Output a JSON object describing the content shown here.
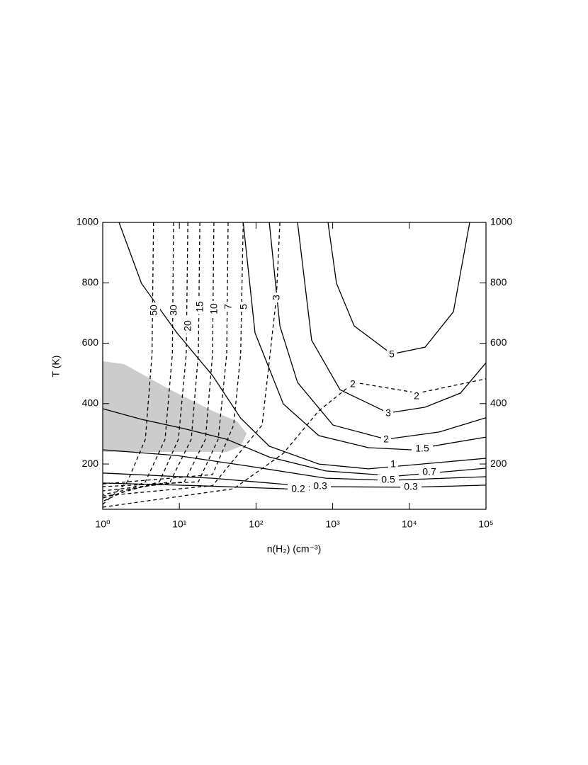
{
  "chart_data": {
    "type": "contour",
    "x_label": "n(H₂) (cm⁻³)",
    "y_label": "T (K)",
    "xlim": [
      1,
      100000
    ],
    "ylim": [
      50,
      1000
    ],
    "xscale": "log",
    "xticks": [
      {
        "value": 1,
        "label": "10⁰"
      },
      {
        "value": 10,
        "label": "10¹"
      },
      {
        "value": 100,
        "label": "10²"
      },
      {
        "value": 1000,
        "label": "10³"
      },
      {
        "value": 10000,
        "label": "10⁴"
      },
      {
        "value": 100000,
        "label": "10⁵"
      }
    ],
    "yticks": [
      200,
      400,
      600,
      800,
      1000
    ],
    "color": "#000000",
    "shade_color": "#cccccc",
    "series": [
      {
        "name": "5",
        "style": "solid",
        "x": [
          869,
          1122,
          1910,
          5900,
          16030,
          37580,
          61300
        ],
        "values": [
          1000,
          798,
          657,
          564,
          587,
          704,
          1000
        ]
      },
      {
        "name": "3",
        "style": "solid",
        "x": [
          348,
          532,
          1248,
          5300,
          16030,
          46450,
          100000
        ],
        "values": [
          1000,
          610,
          446,
          369,
          388,
          435,
          535
        ]
      },
      {
        "name": "2",
        "style": "solid",
        "x": [
          149,
          205,
          348,
          1009,
          4980,
          24550,
          100000
        ],
        "values": [
          1000,
          657,
          470,
          329,
          282,
          306,
          353
        ]
      },
      {
        "name": "1.5",
        "style": "solid",
        "x": [
          68,
          97,
          227,
          659,
          2924,
          10470,
          100000
        ],
        "values": [
          1000,
          634,
          399,
          294,
          254,
          247,
          289
        ]
      },
      {
        "name": "1",
        "style": "solid",
        "x": [
          1.63,
          3.2,
          9.3,
          27.1,
          63,
          149,
          659,
          2924,
          100000
        ],
        "values": [
          1000,
          798,
          634,
          493,
          352,
          259,
          200,
          184,
          219
        ]
      },
      {
        "name": "0.7",
        "style": "solid",
        "x": [
          1,
          3.2,
          11.6,
          41.4,
          149,
          815,
          6840,
          100000
        ],
        "values": [
          383,
          348,
          317,
          282,
          223,
          177,
          160,
          186
        ]
      },
      {
        "name": "0.5",
        "style": "solid",
        "x": [
          1,
          9.3,
          79,
          815,
          5300,
          100000
        ],
        "values": [
          247,
          228,
          193,
          153,
          146,
          158
        ]
      },
      {
        "name": "0.3",
        "style": "solid",
        "x": [
          1,
          27.1,
          532,
          10470,
          100000
        ],
        "values": [
          170,
          153,
          125,
          123,
          130
        ]
      },
      {
        "name": "0.2",
        "style": "solid",
        "x": [
          1,
          17.7,
          227,
          532
        ],
        "values": [
          137,
          128,
          118,
          113
        ]
      },
      {
        "name": "50",
        "style": "dashed",
        "x": [
          4.6,
          4.4,
          3.6,
          2.1,
          1
        ],
        "values": [
          1000,
          564,
          282,
          141,
          66
        ]
      },
      {
        "name": "30",
        "style": "dashed",
        "x": [
          8.4,
          8.1,
          6.5,
          3.6,
          1
        ],
        "values": [
          1000,
          564,
          282,
          141,
          76
        ]
      },
      {
        "name": "20",
        "style": "dashed",
        "x": [
          12.9,
          12.3,
          9.7,
          5.5,
          1
        ],
        "values": [
          1000,
          564,
          282,
          141,
          87
        ]
      },
      {
        "name": "15",
        "style": "dashed",
        "x": [
          18.5,
          17.7,
          14.3,
          7.6,
          1
        ],
        "values": [
          1000,
          564,
          282,
          141,
          99
        ]
      },
      {
        "name": "10",
        "style": "dashed",
        "x": [
          28.2,
          27.1,
          21.9,
          11.6,
          1
        ],
        "values": [
          1000,
          564,
          282,
          141,
          111
        ]
      },
      {
        "name": "7",
        "style": "dashed",
        "x": [
          43.2,
          41.4,
          32.1,
          17.7,
          1
        ],
        "values": [
          1000,
          564,
          282,
          141,
          125
        ]
      },
      {
        "name": "5",
        "style": "dashed",
        "x": [
          68,
          63,
          51,
          27.1,
          1
        ],
        "values": [
          1000,
          564,
          329,
          165,
          134
        ]
      },
      {
        "name": "3",
        "style": "dashed",
        "x": [
          205,
          184,
          120,
          27.1,
          1
        ],
        "values": [
          1000,
          751,
          329,
          128,
          94
        ]
      },
      {
        "name": "2",
        "style": "dashed",
        "x": [
          1,
          51,
          227,
          659,
          1910,
          12970,
          100000
        ],
        "values": [
          57,
          118,
          235,
          376,
          470,
          435,
          482
        ]
      }
    ]
  }
}
